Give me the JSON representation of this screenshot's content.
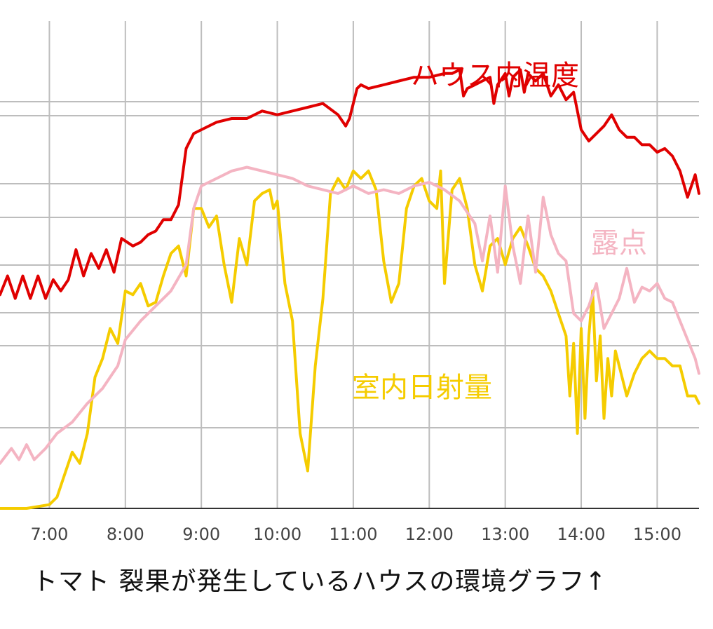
{
  "chart_data": {
    "type": "line",
    "title": "",
    "xlabel": "",
    "ylabel": "",
    "xlim": [
      6.35,
      15.55
    ],
    "x_ticks": [
      "7:00",
      "8:00",
      "9:00",
      "10:00",
      "11:00",
      "12:00",
      "13:00",
      "14:00",
      "15:00"
    ],
    "x_tick_values": [
      7,
      8,
      9,
      10,
      11,
      12,
      13,
      14,
      15
    ],
    "y_ticks_shown": false,
    "grid": true,
    "series": [
      {
        "name": "ハウス内温度",
        "color": "#e00000",
        "x": [
          6.35,
          6.45,
          6.55,
          6.65,
          6.75,
          6.85,
          6.95,
          7.05,
          7.15,
          7.25,
          7.35,
          7.45,
          7.55,
          7.65,
          7.75,
          7.85,
          7.95,
          8.1,
          8.2,
          8.3,
          8.4,
          8.5,
          8.6,
          8.7,
          8.8,
          8.9,
          9.0,
          9.2,
          9.4,
          9.6,
          9.8,
          10.0,
          10.2,
          10.4,
          10.6,
          10.8,
          10.9,
          10.95,
          11.05,
          11.1,
          11.2,
          11.4,
          11.6,
          11.8,
          12.0,
          12.2,
          12.3,
          12.4,
          12.45,
          12.5,
          12.6,
          12.7,
          12.8,
          12.85,
          12.9,
          13.0,
          13.05,
          13.1,
          13.2,
          13.25,
          13.3,
          13.4,
          13.5,
          13.6,
          13.7,
          13.8,
          13.9,
          14.0,
          14.1,
          14.2,
          14.3,
          14.4,
          14.5,
          14.6,
          14.7,
          14.8,
          14.9,
          15.0,
          15.1,
          15.2,
          15.3,
          15.4,
          15.5,
          15.55
        ],
        "y": [
          57,
          62,
          56,
          62,
          56,
          62,
          56,
          61,
          58,
          61,
          69,
          62,
          68,
          64,
          69,
          63,
          72,
          70,
          71,
          73,
          74,
          77,
          77,
          81,
          96,
          100,
          101,
          103,
          104,
          104,
          106,
          105,
          106,
          107,
          108,
          105,
          102,
          104,
          112,
          113,
          112,
          113,
          114,
          115,
          115,
          116,
          116,
          117,
          110,
          112,
          113,
          114,
          115,
          108,
          113,
          116,
          110,
          115,
          117,
          111,
          116,
          114,
          116,
          110,
          113,
          109,
          111,
          101,
          98,
          100,
          102,
          105,
          101,
          99,
          99,
          97,
          97,
          95,
          96,
          94,
          90,
          83,
          89,
          84
        ],
        "note": "relative level read from gridlines (no y tick labels printed)"
      },
      {
        "name": "露点",
        "color": "#f4b4c2",
        "x": [
          6.35,
          6.5,
          6.6,
          6.7,
          6.8,
          6.95,
          7.1,
          7.3,
          7.5,
          7.7,
          7.9,
          8.0,
          8.2,
          8.4,
          8.6,
          8.8,
          8.9,
          9.0,
          9.2,
          9.4,
          9.6,
          9.8,
          10.0,
          10.2,
          10.4,
          10.6,
          10.8,
          11.0,
          11.2,
          11.4,
          11.6,
          11.8,
          12.0,
          12.2,
          12.4,
          12.6,
          12.7,
          12.8,
          12.9,
          13.0,
          13.1,
          13.2,
          13.3,
          13.4,
          13.5,
          13.6,
          13.7,
          13.8,
          13.9,
          14.0,
          14.1,
          14.2,
          14.3,
          14.4,
          14.5,
          14.6,
          14.7,
          14.8,
          14.9,
          15.0,
          15.1,
          15.2,
          15.3,
          15.4,
          15.5,
          15.55
        ],
        "y": [
          12,
          16,
          13,
          17,
          13,
          16,
          20,
          23,
          28,
          32,
          38,
          45,
          50,
          54,
          58,
          65,
          80,
          86,
          88,
          90,
          91,
          90,
          89,
          88,
          86,
          85,
          84,
          86,
          84,
          85,
          84,
          86,
          87,
          85,
          82,
          76,
          66,
          78,
          63,
          86,
          70,
          60,
          78,
          63,
          83,
          73,
          68,
          66,
          52,
          50,
          54,
          60,
          48,
          52,
          56,
          64,
          55,
          59,
          58,
          60,
          56,
          55,
          50,
          45,
          40,
          36
        ],
        "note": "relative level read from gridlines (no y tick labels printed)"
      },
      {
        "name": "室内日射量",
        "color": "#f5cc00",
        "x": [
          6.35,
          6.7,
          7.0,
          7.1,
          7.2,
          7.3,
          7.4,
          7.5,
          7.6,
          7.7,
          7.8,
          7.9,
          8.0,
          8.1,
          8.2,
          8.3,
          8.4,
          8.5,
          8.6,
          8.7,
          8.8,
          8.9,
          9.0,
          9.1,
          9.2,
          9.3,
          9.4,
          9.5,
          9.6,
          9.7,
          9.8,
          9.9,
          9.95,
          10.0,
          10.1,
          10.2,
          10.3,
          10.4,
          10.5,
          10.6,
          10.7,
          10.8,
          10.9,
          11.0,
          11.1,
          11.2,
          11.3,
          11.4,
          11.5,
          11.6,
          11.7,
          11.8,
          11.9,
          12.0,
          12.1,
          12.15,
          12.2,
          12.3,
          12.4,
          12.5,
          12.6,
          12.7,
          12.8,
          12.9,
          13.0,
          13.1,
          13.2,
          13.3,
          13.4,
          13.5,
          13.6,
          13.7,
          13.8,
          13.85,
          13.9,
          13.95,
          14.0,
          14.05,
          14.1,
          14.15,
          14.2,
          14.25,
          14.3,
          14.35,
          14.4,
          14.45,
          14.5,
          14.6,
          14.7,
          14.8,
          14.9,
          15.0,
          15.1,
          15.2,
          15.3,
          15.4,
          15.5,
          15.55
        ],
        "y": [
          0,
          0,
          1,
          3,
          9,
          15,
          12,
          20,
          35,
          40,
          48,
          44,
          58,
          57,
          60,
          54,
          55,
          62,
          68,
          70,
          62,
          80,
          80,
          75,
          78,
          65,
          55,
          72,
          65,
          82,
          84,
          85,
          80,
          82,
          60,
          50,
          20,
          10,
          38,
          56,
          84,
          88,
          85,
          90,
          88,
          90,
          85,
          66,
          55,
          60,
          80,
          86,
          88,
          82,
          80,
          90,
          60,
          85,
          88,
          80,
          65,
          58,
          70,
          72,
          65,
          72,
          75,
          70,
          64,
          62,
          58,
          52,
          46,
          30,
          44,
          20,
          48,
          24,
          46,
          58,
          34,
          46,
          24,
          40,
          30,
          42,
          38,
          30,
          36,
          40,
          42,
          40,
          40,
          38,
          38,
          30,
          30,
          28
        ],
        "note": "relative level read from gridlines (no y tick labels printed)"
      }
    ]
  },
  "labels": {
    "temperature": "ハウス内温度",
    "dewpoint": "露点",
    "solar": "室内日射量"
  },
  "caption": "トマト 裂果が発生しているハウスの環境グラフ↑"
}
